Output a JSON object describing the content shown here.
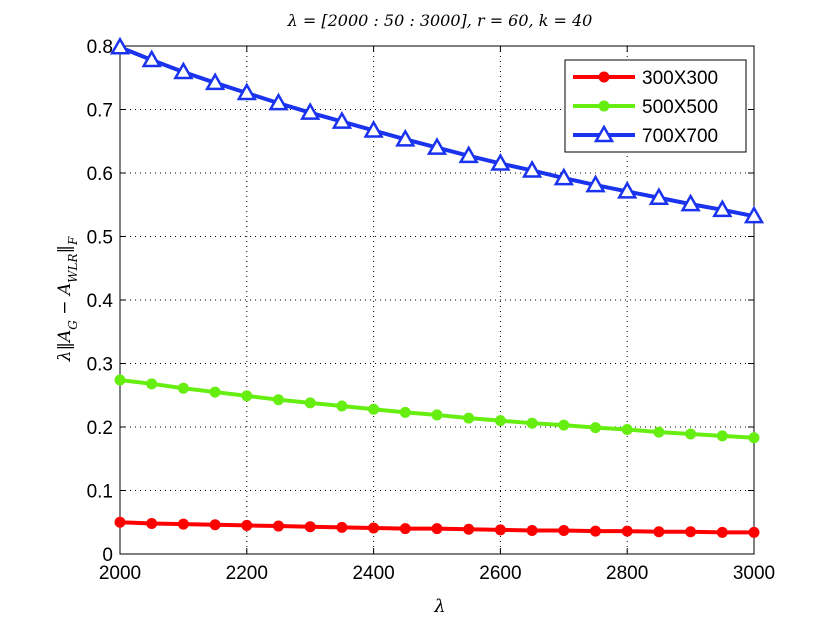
{
  "chart_data": {
    "type": "line",
    "title": "λ = [2000 : 50 : 3000], r = 60, k = 40",
    "xlabel": "λ",
    "ylabel": "λ‖A_G − A_WLR‖_F",
    "xlim": [
      2000,
      3000
    ],
    "ylim": [
      0,
      0.8
    ],
    "xticks": [
      2000,
      2200,
      2400,
      2600,
      2800,
      3000
    ],
    "yticks": [
      0,
      0.1,
      0.2,
      0.3,
      0.4,
      0.5,
      0.6,
      0.7,
      0.8
    ],
    "grid": true,
    "legend_position": "top-right",
    "x": [
      2000,
      2050,
      2100,
      2150,
      2200,
      2250,
      2300,
      2350,
      2400,
      2450,
      2500,
      2550,
      2600,
      2650,
      2700,
      2750,
      2800,
      2850,
      2900,
      2950,
      3000
    ],
    "series": [
      {
        "name": "300X300",
        "color": "#ff0000",
        "marker": "circle",
        "values": [
          0.05,
          0.048,
          0.047,
          0.046,
          0.045,
          0.044,
          0.043,
          0.042,
          0.041,
          0.04,
          0.04,
          0.039,
          0.038,
          0.037,
          0.037,
          0.036,
          0.036,
          0.035,
          0.035,
          0.034,
          0.034
        ]
      },
      {
        "name": "500X500",
        "color": "#66ee11",
        "marker": "circle",
        "values": [
          0.274,
          0.268,
          0.261,
          0.255,
          0.249,
          0.243,
          0.238,
          0.233,
          0.228,
          0.223,
          0.219,
          0.214,
          0.21,
          0.206,
          0.203,
          0.199,
          0.196,
          0.192,
          0.189,
          0.186,
          0.183
        ]
      },
      {
        "name": "700X700",
        "color": "#1a33ee",
        "marker": "triangle",
        "values": [
          0.798,
          0.778,
          0.759,
          0.742,
          0.726,
          0.71,
          0.695,
          0.681,
          0.667,
          0.653,
          0.64,
          0.627,
          0.615,
          0.604,
          0.592,
          0.581,
          0.571,
          0.561,
          0.551,
          0.542,
          0.532
        ]
      }
    ]
  }
}
